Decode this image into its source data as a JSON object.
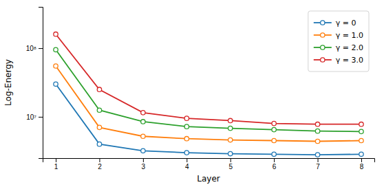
{
  "chart_data": {
    "type": "line",
    "xlabel": "Layer",
    "ylabel": "Log-Energy",
    "x": [
      1,
      2,
      3,
      4,
      5,
      6,
      7,
      8
    ],
    "series": [
      {
        "name": "γ = 0",
        "color": "#1f77b4",
        "values": [
          30000000,
          4000000,
          3200000,
          3000000,
          2900000,
          2850000,
          2800000,
          2850000
        ]
      },
      {
        "name": "γ = 1.0",
        "color": "#ff7f0e",
        "values": [
          55000000,
          7000000,
          5200000,
          4800000,
          4600000,
          4500000,
          4400000,
          4500000
        ]
      },
      {
        "name": "γ = 2.0",
        "color": "#2ca02c",
        "values": [
          95000000,
          12500000,
          8500000,
          7200000,
          6800000,
          6500000,
          6200000,
          6100000
        ]
      },
      {
        "name": "γ = 3.0",
        "color": "#d62728",
        "values": [
          160000000,
          25000000,
          11500000,
          9500000,
          8800000,
          8000000,
          7800000,
          7800000
        ]
      }
    ],
    "xlim": [
      0.7,
      8.3
    ],
    "xticks": [
      1,
      2,
      3,
      4,
      5,
      6,
      7,
      8
    ],
    "ylim": [
      2500000,
      400000000
    ],
    "yticks": [
      {
        "value": 10000000,
        "label": "10⁷"
      },
      {
        "value": 100000000,
        "label": "10⁸"
      }
    ],
    "log": "y",
    "grid": false,
    "legend": "upper right",
    "marker": "circle"
  }
}
